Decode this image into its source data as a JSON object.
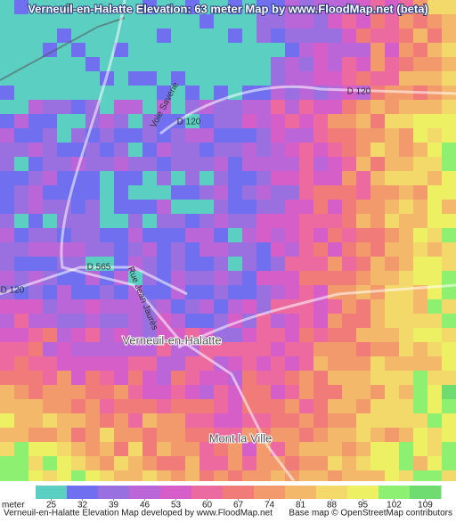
{
  "title": "Verneuil-en-Halatte Elevation: 63 meter Map by www.FloodMap.net (beta)",
  "map_labels": [
    "Verneuil-en-Halatte",
    "Mont la Ville",
    "D 120",
    "D 120",
    "D 120",
    "D 565",
    "Voie Saverie",
    "Rue Jean Jaurès"
  ],
  "legend": {
    "unit": "meter",
    "ticks": [
      25,
      32,
      39,
      46,
      53,
      60,
      67,
      74,
      81,
      88,
      95,
      102,
      109
    ],
    "colors": [
      "#5ccfc3",
      "#6f6ff0",
      "#9a6fe0",
      "#bb66d8",
      "#d65ec8",
      "#ec6aa0",
      "#f07b78",
      "#f29a6c",
      "#f3b86a",
      "#f3d86a",
      "#eef064",
      "#8ef070",
      "#6fdc6f"
    ]
  },
  "footer": {
    "credit": "Verneuil-en-Halatte Elevation Map developed by www.FloodMap.net",
    "attribution": "Base map © OpenStreetMap contributors"
  }
}
